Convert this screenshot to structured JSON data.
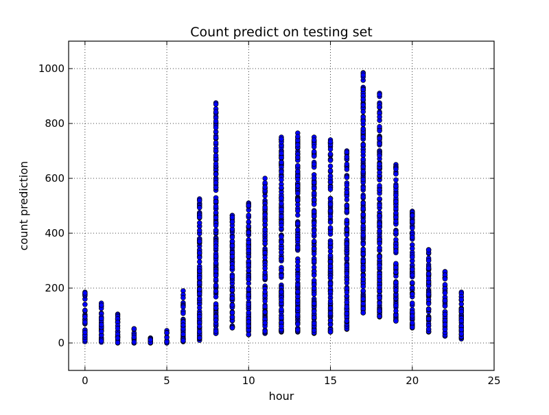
{
  "chart_data": {
    "type": "scatter",
    "title": "Count predict on testing set",
    "xlabel": "hour",
    "ylabel": "count prediction",
    "xlim": [
      -1,
      25
    ],
    "ylim": [
      -100,
      1100
    ],
    "xticks": [
      0,
      5,
      10,
      15,
      20,
      25
    ],
    "yticks": [
      0,
      200,
      400,
      600,
      800,
      1000
    ],
    "xtick_labels": [
      "0",
      "5",
      "10",
      "15",
      "20",
      "25"
    ],
    "ytick_labels": [
      "0",
      "200",
      "400",
      "600",
      "800",
      "1000"
    ],
    "grid": true,
    "grid_style": "dotted",
    "marker_color": "#0000ff",
    "marker_edge_color": "#000000",
    "series": [
      {
        "points": [
          {
            "hour": 0,
            "min": 5,
            "max": 185
          },
          {
            "hour": 1,
            "min": 3,
            "max": 145
          },
          {
            "hour": 2,
            "min": 0,
            "max": 105
          },
          {
            "hour": 3,
            "min": 0,
            "max": 52
          },
          {
            "hour": 4,
            "min": 0,
            "max": 18
          },
          {
            "hour": 5,
            "min": 0,
            "max": 45
          },
          {
            "hour": 6,
            "min": 5,
            "max": 190
          },
          {
            "hour": 7,
            "min": 10,
            "max": 525
          },
          {
            "hour": 8,
            "min": 35,
            "max": 875
          },
          {
            "hour": 9,
            "min": 55,
            "max": 465
          },
          {
            "hour": 10,
            "min": 30,
            "max": 510
          },
          {
            "hour": 11,
            "min": 35,
            "max": 600
          },
          {
            "hour": 12,
            "min": 40,
            "max": 750
          },
          {
            "hour": 13,
            "min": 40,
            "max": 765
          },
          {
            "hour": 14,
            "min": 35,
            "max": 750
          },
          {
            "hour": 15,
            "min": 40,
            "max": 740
          },
          {
            "hour": 16,
            "min": 50,
            "max": 700
          },
          {
            "hour": 17,
            "min": 110,
            "max": 985
          },
          {
            "hour": 18,
            "min": 95,
            "max": 910
          },
          {
            "hour": 19,
            "min": 80,
            "max": 650
          },
          {
            "hour": 20,
            "min": 55,
            "max": 480
          },
          {
            "hour": 21,
            "min": 40,
            "max": 340
          },
          {
            "hour": 22,
            "min": 25,
            "max": 260
          },
          {
            "hour": 23,
            "min": 15,
            "max": 185
          }
        ]
      }
    ]
  }
}
